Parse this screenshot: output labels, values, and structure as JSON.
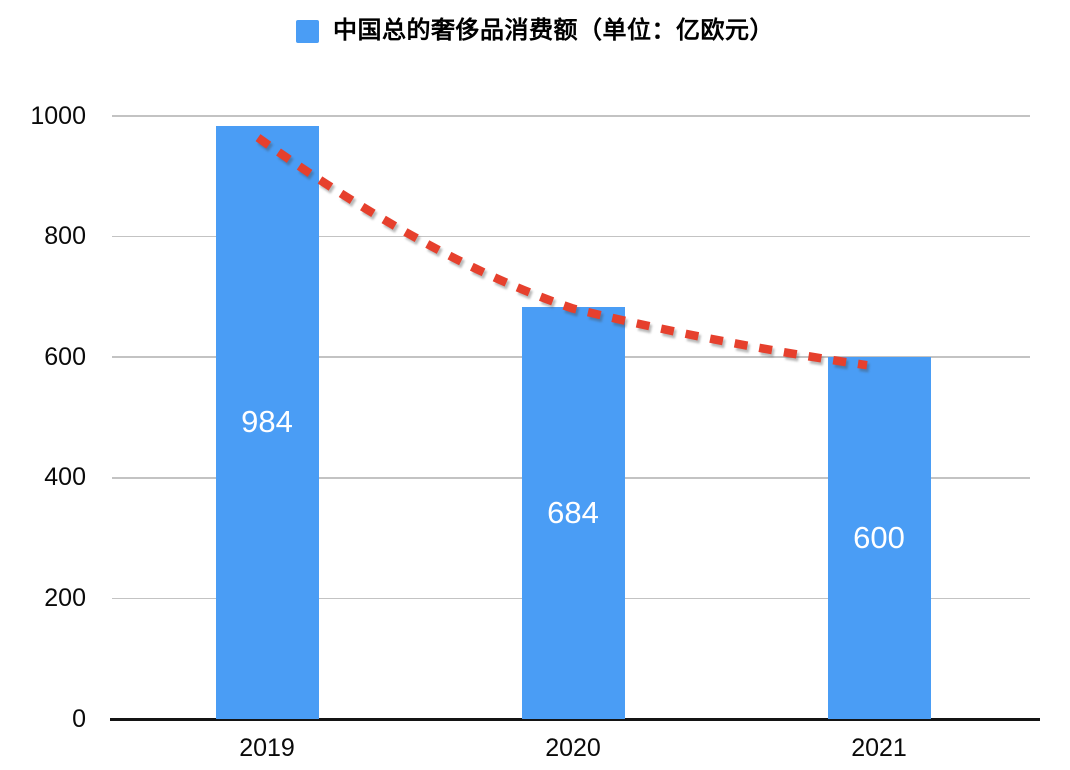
{
  "legend": {
    "label": "中国总的奢侈品消费额（单位：亿欧元）",
    "marker_color": "#4A9DF5"
  },
  "chart_data": {
    "type": "bar",
    "title": "中国总的奢侈品消费额（单位：亿欧元）",
    "series_name": "中国总的奢侈品消费额",
    "unit": "亿欧元",
    "categories": [
      "2019",
      "2020",
      "2021"
    ],
    "values": [
      984,
      684,
      600
    ],
    "data_labels": [
      "984",
      "684",
      "600"
    ],
    "data_label_color": "#FFFFFF",
    "bar_color": "#4A9DF5",
    "xlabel": "",
    "ylabel": "",
    "ylim": [
      0,
      1000
    ],
    "y_ticks": [
      0,
      200,
      400,
      600,
      800,
      1000
    ],
    "grid": true,
    "gridline_color": "#C3C3C3",
    "axis_color": "#141414",
    "legend_position": "top-center",
    "background": "#FFFFFF",
    "trend": {
      "style": "dashed",
      "shape": "smooth-declining-curve",
      "color": "#E6402D",
      "values": [
        984,
        684,
        600
      ]
    }
  }
}
